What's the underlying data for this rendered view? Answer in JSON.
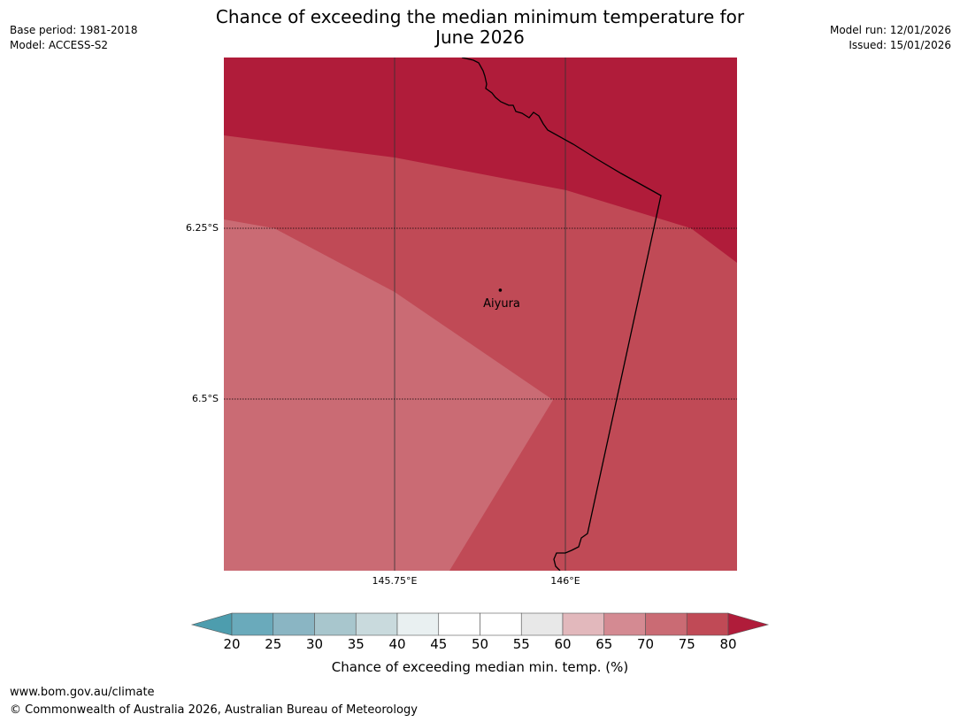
{
  "header": {
    "base_period": "Base period: 1981-2018",
    "model": "Model: ACCESS-S2",
    "model_run": "Model run: 12/01/2026",
    "issued": "Issued: 15/01/2026",
    "title_line1": "Chance of exceeding the median minimum temperature for",
    "title_line2": "June 2026"
  },
  "map": {
    "lat_labels": [
      "6.25°S",
      "6.5°S"
    ],
    "lon_labels": [
      "145.75°E",
      "146°E"
    ],
    "place": {
      "name": "Aiyura",
      "lat": -6.34,
      "lon": 145.904
    },
    "extent": {
      "lon_min": 145.5,
      "lon_max": 146.25,
      "lat_top": -6.0,
      "lat_bottom": -6.75
    },
    "zones": [
      {
        "range": "75-80",
        "color": "#c04a56"
      },
      {
        "range": "70-75",
        "color": "#ca6b74"
      },
      {
        "range": "80+",
        "color": "#b01c3a"
      }
    ],
    "border_color": "#000000"
  },
  "colorbar": {
    "ticks": [
      "20",
      "25",
      "30",
      "35",
      "40",
      "45",
      "50",
      "55",
      "60",
      "65",
      "70",
      "75",
      "80"
    ],
    "colors": [
      "#6aaabb",
      "#8ab5c3",
      "#a8c6cd",
      "#c9dadd",
      "#e9f0f1",
      "#ffffff",
      "#ffffff",
      "#e8e8e8",
      "#e2b8bc",
      "#d48a92",
      "#ca6b74",
      "#c04a56"
    ],
    "under_color": "#4d9dae",
    "over_color": "#b01c3a",
    "label": "Chance of exceeding median min. temp. (%)"
  },
  "footer": {
    "url": "www.bom.gov.au/climate",
    "copyright": "© Commonwealth of Australia 2026, Australian Bureau of Meteorology"
  }
}
